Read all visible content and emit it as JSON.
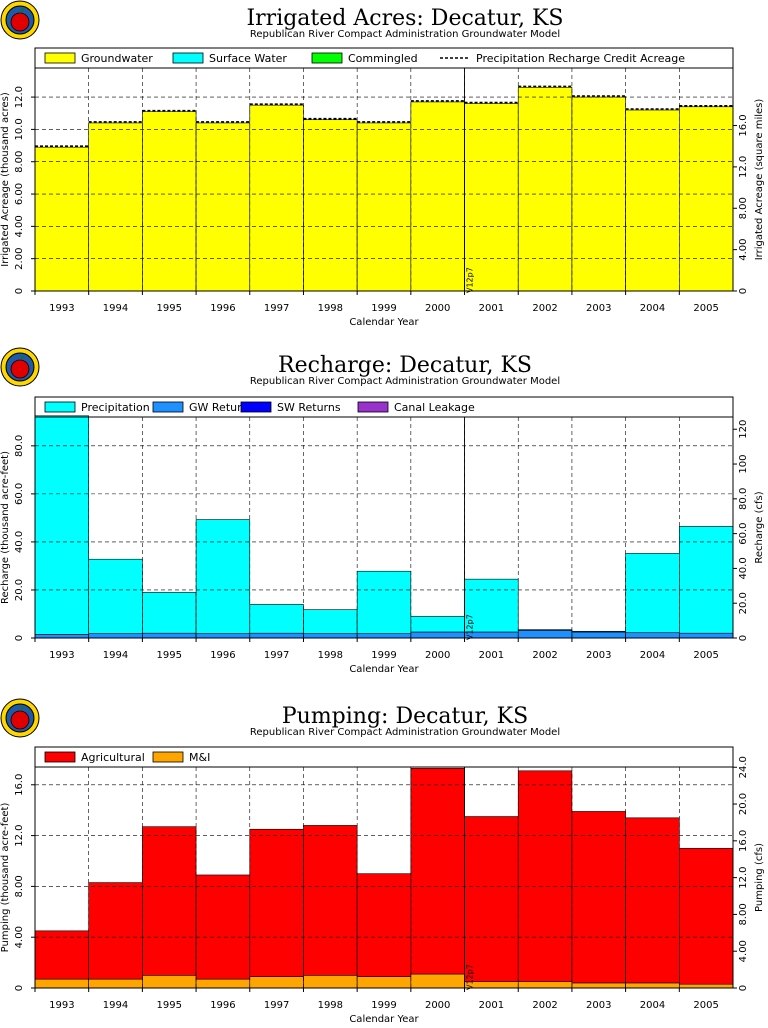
{
  "colors": {
    "groundwater": "#ffff00",
    "surface_water": "#00ffff",
    "commingled": "#00ff00",
    "precipitation": "#00ffff",
    "gw_returns": "#1e90ff",
    "sw_returns": "#0000ff",
    "canal_leakage": "#9932cc",
    "agricultural": "#ff0000",
    "mi": "#ffa500"
  },
  "chart_data": [
    {
      "type": "bar",
      "title": "Irrigated Acres: Decatur, KS",
      "subtitle": "Republican River Compact Administration Groundwater Model",
      "xlabel": "Calendar Year",
      "ylabel": "Irrigated Acreage (thousand acres)",
      "y2label": "Irrigated Acreage (square miles)",
      "categories": [
        "1993",
        "1994",
        "1995",
        "1996",
        "1997",
        "1998",
        "1999",
        "2000",
        "2001",
        "2002",
        "2003",
        "2004",
        "2005"
      ],
      "ylim": [
        0,
        13.8
      ],
      "yticks": [
        "0",
        "2.00",
        "4.00",
        "6.00",
        "8.00",
        "10.0",
        "12.0"
      ],
      "y2ticks": [
        "0",
        "4.00",
        "8.00",
        "12.0",
        "16.0"
      ],
      "grid": true,
      "legend_position": "top",
      "legend": [
        "Groundwater",
        "Surface Water",
        "Commingled",
        "Precipitation Recharge Credit Acreage"
      ],
      "series": [
        {
          "name": "Groundwater",
          "values": [
            8.9,
            10.4,
            11.1,
            10.4,
            11.5,
            10.6,
            10.4,
            11.7,
            11.6,
            12.6,
            12.0,
            11.2,
            11.4
          ]
        },
        {
          "name": "Surface Water",
          "values": [
            0,
            0,
            0,
            0,
            0,
            0,
            0,
            0,
            0,
            0,
            0,
            0,
            0
          ]
        },
        {
          "name": "Commingled",
          "values": [
            0,
            0,
            0,
            0,
            0,
            0,
            0,
            0,
            0,
            0,
            0,
            0,
            0
          ]
        },
        {
          "name": "Precipitation Recharge Credit Acreage",
          "values": [
            8.9,
            10.4,
            11.1,
            10.4,
            11.5,
            10.6,
            10.4,
            11.7,
            11.6,
            12.6,
            12.0,
            11.2,
            11.4
          ]
        }
      ],
      "annotation": "V12p7"
    },
    {
      "type": "bar",
      "title": "Recharge: Decatur, KS",
      "subtitle": "Republican River Compact Administration Groundwater Model",
      "xlabel": "Calendar Year",
      "ylabel": "Recharge (thousand acre-feet)",
      "y2label": "Recharge (cfs)",
      "categories": [
        "1993",
        "1994",
        "1995",
        "1996",
        "1997",
        "1998",
        "1999",
        "2000",
        "2001",
        "2002",
        "2003",
        "2004",
        "2005"
      ],
      "ylim": [
        0,
        92
      ],
      "yticks": [
        "0",
        "20.0",
        "40.0",
        "60.0",
        "80.0"
      ],
      "y2ticks": [
        "0",
        "20.0",
        "40.0",
        "60.0",
        "80.0",
        "100",
        "120"
      ],
      "grid": true,
      "legend_position": "top",
      "legend": [
        "Precipitation",
        "GW Returns",
        "SW Returns",
        "Canal Leakage"
      ],
      "series": [
        {
          "name": "GW Returns",
          "values": [
            1.5,
            1.8,
            2.0,
            1.8,
            2.0,
            1.8,
            1.8,
            2.5,
            2.5,
            3.2,
            2.5,
            2.2,
            2.0
          ]
        },
        {
          "name": "Precipitation",
          "values": [
            91.0,
            31.0,
            17.0,
            47.5,
            12.0,
            10.0,
            26.0,
            6.5,
            22.0,
            0.3,
            0.3,
            33.0,
            44.5
          ]
        },
        {
          "name": "SW Returns",
          "values": [
            0,
            0,
            0,
            0,
            0,
            0,
            0,
            0,
            0,
            0,
            0,
            0,
            0
          ]
        },
        {
          "name": "Canal Leakage",
          "values": [
            0,
            0,
            0,
            0,
            0,
            0,
            0,
            0,
            0,
            0,
            0,
            0,
            0
          ]
        }
      ],
      "annotation": "V12p7"
    },
    {
      "type": "bar",
      "title": "Pumping: Decatur, KS",
      "subtitle": "Republican River Compact Administration Groundwater Model",
      "xlabel": "Calendar Year",
      "ylabel": "Pumping (thousand acre-feet)",
      "y2label": "Pumping (cfs)",
      "categories": [
        "1993",
        "1994",
        "1995",
        "1996",
        "1997",
        "1998",
        "1999",
        "2000",
        "2001",
        "2002",
        "2003",
        "2004",
        "2005"
      ],
      "ylim": [
        0,
        17.4
      ],
      "yticks": [
        "0",
        "4.00",
        "8.00",
        "12.0",
        "16.0"
      ],
      "y2ticks": [
        "0",
        "4.00",
        "8.00",
        "12.0",
        "16.0",
        "20.0",
        "24.0"
      ],
      "grid": true,
      "legend_position": "top",
      "legend": [
        "Agricultural",
        "M&I"
      ],
      "series": [
        {
          "name": "M&I",
          "values": [
            0.7,
            0.7,
            1.0,
            0.7,
            0.9,
            1.0,
            0.9,
            1.1,
            0.5,
            0.5,
            0.4,
            0.4,
            0.3
          ]
        },
        {
          "name": "Agricultural",
          "values": [
            3.8,
            7.6,
            11.7,
            8.2,
            11.6,
            11.8,
            8.1,
            16.2,
            13.0,
            16.6,
            13.5,
            13.0,
            10.7
          ]
        }
      ],
      "annotation": "V12p7"
    }
  ]
}
